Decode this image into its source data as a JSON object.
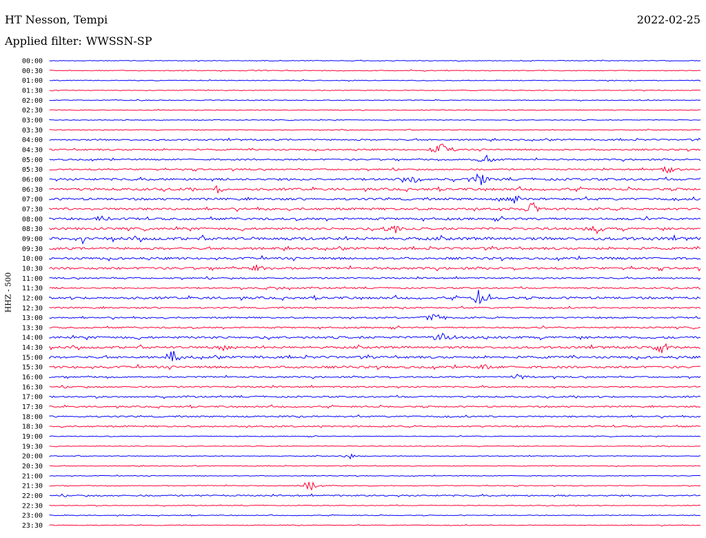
{
  "header": {
    "station": "HT Nesson, Tempi",
    "date": "2022-02-25",
    "filter_label": "Applied filter:",
    "filter_value": "WWSSN-SP"
  },
  "colors": {
    "blue": "#0000ff",
    "red": "#ff0033"
  },
  "chart_data": {
    "type": "line",
    "title": "HT Nesson, Tempi",
    "ylabel": "HHZ - 500",
    "grid": false,
    "legend": "none",
    "categories": [
      "00:00",
      "00:30",
      "01:00",
      "01:30",
      "02:00",
      "02:30",
      "03:00",
      "03:30",
      "04:00",
      "04:30",
      "05:00",
      "05:30",
      "06:00",
      "06:30",
      "07:00",
      "07:30",
      "08:00",
      "08:30",
      "09:00",
      "09:30",
      "10:00",
      "10:30",
      "11:00",
      "11:30",
      "12:00",
      "12:30",
      "13:00",
      "13:30",
      "14:00",
      "14:30",
      "15:00",
      "15:30",
      "16:00",
      "16:30",
      "17:00",
      "17:30",
      "18:00",
      "18:30",
      "19:00",
      "19:30",
      "20:00",
      "20:30",
      "21:00",
      "21:30",
      "22:00",
      "22:30",
      "23:00",
      "23:30"
    ],
    "trace_noise_level": [
      1,
      1,
      1,
      1,
      1,
      1,
      1,
      1,
      2,
      2,
      2,
      2,
      3,
      3,
      3,
      3,
      3,
      3,
      4,
      3,
      3,
      3,
      2,
      2,
      3,
      2,
      2,
      2,
      3,
      3,
      3,
      3,
      2,
      2,
      2,
      2,
      2,
      2,
      1,
      1,
      1,
      1,
      1,
      1,
      2,
      1,
      1,
      1
    ],
    "events": [
      {
        "row": 9,
        "t": 0.6,
        "amp": 12
      },
      {
        "row": 10,
        "t": 0.67,
        "amp": 8
      },
      {
        "row": 11,
        "t": 0.95,
        "amp": 10
      },
      {
        "row": 12,
        "t": 0.56,
        "amp": 7
      },
      {
        "row": 12,
        "t": 0.66,
        "amp": 14
      },
      {
        "row": 13,
        "t": 0.26,
        "amp": 7
      },
      {
        "row": 14,
        "t": 0.71,
        "amp": 12
      },
      {
        "row": 15,
        "t": 0.74,
        "amp": 14
      },
      {
        "row": 16,
        "t": 0.08,
        "amp": 8
      },
      {
        "row": 17,
        "t": 0.53,
        "amp": 10
      },
      {
        "row": 17,
        "t": 0.84,
        "amp": 8
      },
      {
        "row": 18,
        "t": 0.05,
        "amp": 8
      },
      {
        "row": 21,
        "t": 0.32,
        "amp": 6
      },
      {
        "row": 23,
        "t": 0.34,
        "amp": 7
      },
      {
        "row": 24,
        "t": 0.66,
        "amp": 14
      },
      {
        "row": 26,
        "t": 0.59,
        "amp": 12
      },
      {
        "row": 28,
        "t": 0.6,
        "amp": 8
      },
      {
        "row": 29,
        "t": 0.27,
        "amp": 7
      },
      {
        "row": 29,
        "t": 0.94,
        "amp": 10
      },
      {
        "row": 30,
        "t": 0.19,
        "amp": 12
      },
      {
        "row": 31,
        "t": 0.67,
        "amp": 6
      },
      {
        "row": 32,
        "t": 0.72,
        "amp": 5
      },
      {
        "row": 40,
        "t": 0.46,
        "amp": 5
      },
      {
        "row": 43,
        "t": 0.4,
        "amp": 9
      }
    ]
  }
}
